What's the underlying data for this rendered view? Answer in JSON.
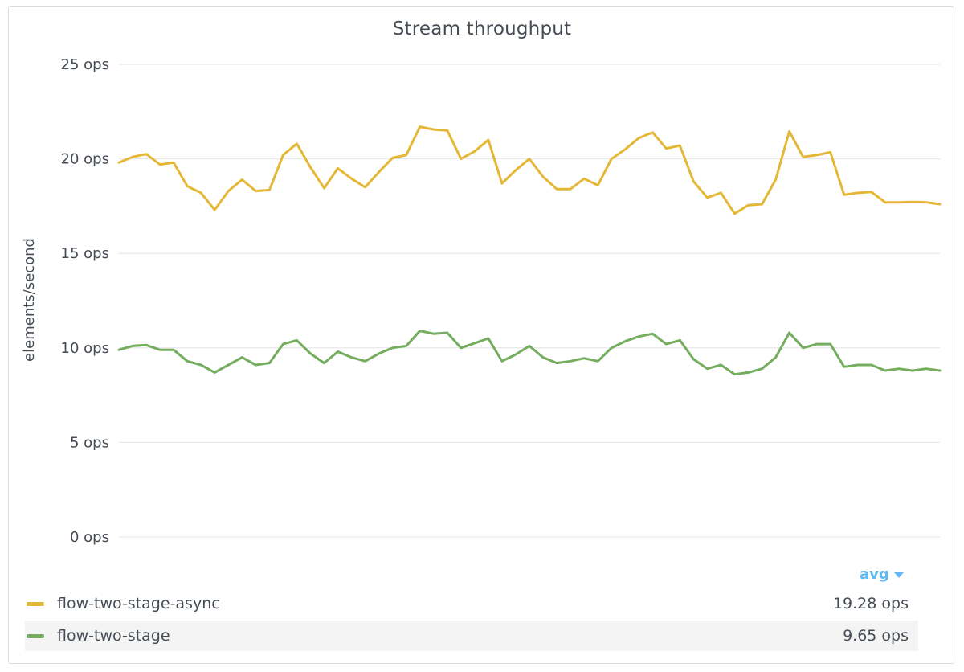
{
  "panel": {
    "title": "Stream throughput"
  },
  "legend": {
    "header": "avg",
    "items": [
      {
        "name": "flow-two-stage-async",
        "value": "19.28 ops",
        "color": "#e5b737"
      },
      {
        "name": "flow-two-stage",
        "value": "9.65 ops",
        "color": "#74ad5e"
      }
    ]
  },
  "chart_data": {
    "type": "line",
    "title": "Stream throughput",
    "ylabel": "elements/second",
    "xlabel": "",
    "ylim": [
      0,
      25
    ],
    "yticks": [
      {
        "value": 0,
        "label": "0 ops"
      },
      {
        "value": 5,
        "label": "5 ops"
      },
      {
        "value": 10,
        "label": "10 ops"
      },
      {
        "value": 15,
        "label": "15 ops"
      },
      {
        "value": 20,
        "label": "20 ops"
      },
      {
        "value": 25,
        "label": "25 ops"
      }
    ],
    "grid": true,
    "legend_placement": "bottom",
    "series": [
      {
        "name": "flow-two-stage-async",
        "color": "#e5b737",
        "values": [
          19.8,
          20.1,
          20.25,
          19.7,
          19.8,
          18.55,
          18.2,
          17.3,
          18.3,
          18.9,
          18.3,
          18.35,
          20.2,
          20.8,
          19.55,
          18.45,
          19.5,
          18.95,
          18.5,
          19.3,
          20.05,
          20.2,
          21.7,
          21.55,
          21.5,
          20.0,
          20.4,
          21.0,
          18.7,
          19.4,
          20.0,
          19.05,
          18.4,
          18.4,
          18.95,
          18.6,
          20.0,
          20.5,
          21.1,
          21.4,
          20.55,
          20.7,
          18.8,
          17.95,
          18.2,
          17.1,
          17.55,
          17.6,
          18.9,
          21.45,
          20.1,
          20.2,
          20.35,
          18.1,
          18.2,
          18.25,
          17.7,
          17.7,
          17.72,
          17.7,
          17.6
        ]
      },
      {
        "name": "flow-two-stage",
        "color": "#74ad5e",
        "values": [
          9.9,
          10.1,
          10.15,
          9.9,
          9.9,
          9.3,
          9.1,
          8.7,
          9.1,
          9.5,
          9.1,
          9.2,
          10.2,
          10.4,
          9.7,
          9.2,
          9.8,
          9.5,
          9.3,
          9.7,
          10.0,
          10.1,
          10.9,
          10.75,
          10.8,
          10.0,
          10.25,
          10.5,
          9.3,
          9.65,
          10.1,
          9.5,
          9.2,
          9.3,
          9.45,
          9.3,
          10.0,
          10.35,
          10.6,
          10.75,
          10.2,
          10.4,
          9.4,
          8.9,
          9.1,
          8.6,
          8.7,
          8.9,
          9.5,
          10.8,
          10.0,
          10.2,
          10.2,
          9.0,
          9.1,
          9.1,
          8.8,
          8.9,
          8.8,
          8.9,
          8.8
        ]
      }
    ]
  }
}
